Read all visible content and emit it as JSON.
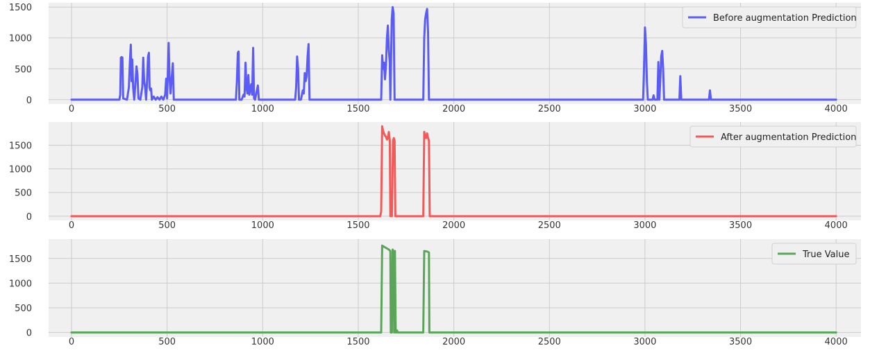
{
  "chart_data": [
    {
      "type": "line",
      "xlim": [
        -120,
        4130
      ],
      "ylim": [
        -70,
        1570
      ],
      "xticks": [
        0,
        500,
        1000,
        1500,
        2000,
        2500,
        3000,
        3500,
        4000
      ],
      "yticks": [
        0,
        500,
        1000,
        1500
      ],
      "xtick_labels": [
        "0",
        "500",
        "1000",
        "1500",
        "2000",
        "2500",
        "3000",
        "3500",
        "4000"
      ],
      "ytick_labels": [
        "0",
        "500",
        "1000",
        "1500"
      ],
      "grid": true,
      "legend_position": "top-right",
      "series": [
        {
          "name": "Before augmentation Prediction",
          "color": "#5b5bf5",
          "points": [
            [
              0,
              0
            ],
            [
              250,
              0
            ],
            [
              255,
              80
            ],
            [
              258,
              680
            ],
            [
              262,
              690
            ],
            [
              266,
              680
            ],
            [
              270,
              20
            ],
            [
              290,
              0
            ],
            [
              300,
              200
            ],
            [
              305,
              600
            ],
            [
              310,
              890
            ],
            [
              314,
              300
            ],
            [
              318,
              650
            ],
            [
              322,
              200
            ],
            [
              328,
              0
            ],
            [
              335,
              300
            ],
            [
              340,
              540
            ],
            [
              345,
              400
            ],
            [
              350,
              20
            ],
            [
              360,
              0
            ],
            [
              370,
              200
            ],
            [
              375,
              680
            ],
            [
              380,
              300
            ],
            [
              385,
              200
            ],
            [
              390,
              0
            ],
            [
              395,
              300
            ],
            [
              400,
              700
            ],
            [
              405,
              760
            ],
            [
              408,
              200
            ],
            [
              412,
              150
            ],
            [
              416,
              180
            ],
            [
              420,
              0
            ],
            [
              430,
              50
            ],
            [
              440,
              0
            ],
            [
              450,
              40
            ],
            [
              460,
              0
            ],
            [
              470,
              50
            ],
            [
              480,
              0
            ],
            [
              490,
              80
            ],
            [
              495,
              340
            ],
            [
              500,
              20
            ],
            [
              505,
              600
            ],
            [
              508,
              920
            ],
            [
              512,
              400
            ],
            [
              518,
              100
            ],
            [
              525,
              400
            ],
            [
              530,
              590
            ],
            [
              535,
              0
            ],
            [
              600,
              0
            ],
            [
              860,
              0
            ],
            [
              865,
              300
            ],
            [
              870,
              760
            ],
            [
              874,
              780
            ],
            [
              878,
              0
            ],
            [
              890,
              0
            ],
            [
              900,
              80
            ],
            [
              905,
              50
            ],
            [
              910,
              600
            ],
            [
              915,
              200
            ],
            [
              920,
              100
            ],
            [
              925,
              400
            ],
            [
              930,
              80
            ],
            [
              940,
              250
            ],
            [
              945,
              80
            ],
            [
              950,
              840
            ],
            [
              955,
              20
            ],
            [
              960,
              0
            ],
            [
              975,
              230
            ],
            [
              980,
              0
            ],
            [
              1170,
              0
            ],
            [
              1175,
              200
            ],
            [
              1180,
              700
            ],
            [
              1185,
              500
            ],
            [
              1190,
              0
            ],
            [
              1200,
              0
            ],
            [
              1210,
              150
            ],
            [
              1215,
              100
            ],
            [
              1220,
              430
            ],
            [
              1225,
              300
            ],
            [
              1230,
              380
            ],
            [
              1235,
              700
            ],
            [
              1240,
              900
            ],
            [
              1245,
              0
            ],
            [
              1300,
              0
            ],
            [
              1620,
              0
            ],
            [
              1625,
              720
            ],
            [
              1630,
              500
            ],
            [
              1635,
              600
            ],
            [
              1640,
              330
            ],
            [
              1645,
              560
            ],
            [
              1650,
              1000
            ],
            [
              1655,
              1200
            ],
            [
              1660,
              800
            ],
            [
              1665,
              600
            ],
            [
              1668,
              0
            ],
            [
              1675,
              1300
            ],
            [
              1680,
              1500
            ],
            [
              1685,
              1400
            ],
            [
              1690,
              0
            ],
            [
              1700,
              0
            ],
            [
              1840,
              0
            ],
            [
              1845,
              1000
            ],
            [
              1850,
              1300
            ],
            [
              1855,
              1400
            ],
            [
              1860,
              1470
            ],
            [
              1865,
              1100
            ],
            [
              1870,
              0
            ],
            [
              1900,
              0
            ],
            [
              2990,
              0
            ],
            [
              2995,
              500
            ],
            [
              3000,
              1170
            ],
            [
              3005,
              900
            ],
            [
              3010,
              300
            ],
            [
              3015,
              0
            ],
            [
              3040,
              0
            ],
            [
              3045,
              70
            ],
            [
              3050,
              0
            ],
            [
              3065,
              0
            ],
            [
              3070,
              610
            ],
            [
              3075,
              0
            ],
            [
              3080,
              300
            ],
            [
              3085,
              700
            ],
            [
              3090,
              790
            ],
            [
              3095,
              500
            ],
            [
              3100,
              0
            ],
            [
              3180,
              0
            ],
            [
              3185,
              380
            ],
            [
              3190,
              0
            ],
            [
              3335,
              0
            ],
            [
              3340,
              150
            ],
            [
              3345,
              0
            ],
            [
              4000,
              0
            ]
          ]
        }
      ]
    },
    {
      "type": "line",
      "xlim": [
        -120,
        4130
      ],
      "ylim": [
        -90,
        1990
      ],
      "xticks": [
        0,
        500,
        1000,
        1500,
        2000,
        2500,
        3000,
        3500,
        4000
      ],
      "yticks": [
        0,
        500,
        1000,
        1500
      ],
      "xtick_labels": [
        "0",
        "500",
        "1000",
        "1500",
        "2000",
        "2500",
        "3000",
        "3500",
        "4000"
      ],
      "ytick_labels": [
        "0",
        "500",
        "1000",
        "1500"
      ],
      "grid": true,
      "legend_position": "top-right",
      "series": [
        {
          "name": "After augmentation Prediction",
          "color": "#f25a5a",
          "points": [
            [
              0,
              0
            ],
            [
              1615,
              0
            ],
            [
              1620,
              100
            ],
            [
              1625,
              1900
            ],
            [
              1630,
              1800
            ],
            [
              1635,
              1750
            ],
            [
              1640,
              1700
            ],
            [
              1645,
              1680
            ],
            [
              1650,
              1620
            ],
            [
              1655,
              1640
            ],
            [
              1660,
              1780
            ],
            [
              1665,
              1600
            ],
            [
              1668,
              0
            ],
            [
              1672,
              200
            ],
            [
              1676,
              0
            ],
            [
              1682,
              1600
            ],
            [
              1686,
              1650
            ],
            [
              1690,
              1600
            ],
            [
              1694,
              0
            ],
            [
              1700,
              0
            ],
            [
              1840,
              0
            ],
            [
              1845,
              1780
            ],
            [
              1850,
              1700
            ],
            [
              1855,
              1650
            ],
            [
              1860,
              1750
            ],
            [
              1865,
              1650
            ],
            [
              1870,
              1600
            ],
            [
              1874,
              0
            ],
            [
              4000,
              0
            ]
          ]
        }
      ]
    },
    {
      "type": "line",
      "xlim": [
        -120,
        4130
      ],
      "ylim": [
        -90,
        1890
      ],
      "xticks": [
        0,
        500,
        1000,
        1500,
        2000,
        2500,
        3000,
        3500,
        4000
      ],
      "yticks": [
        0,
        500,
        1000,
        1500
      ],
      "xtick_labels": [
        "0",
        "500",
        "1000",
        "1500",
        "2000",
        "2500",
        "3000",
        "3500",
        "4000"
      ],
      "ytick_labels": [
        "0",
        "500",
        "1000",
        "1500"
      ],
      "grid": true,
      "legend_position": "top-right",
      "series": [
        {
          "name": "True Value",
          "color": "#5aa55a",
          "points": [
            [
              0,
              0
            ],
            [
              1620,
              0
            ],
            [
              1625,
              1760
            ],
            [
              1660,
              1680
            ],
            [
              1668,
              1650
            ],
            [
              1670,
              0
            ],
            [
              1676,
              0
            ],
            [
              1680,
              1680
            ],
            [
              1686,
              1640
            ],
            [
              1688,
              0
            ],
            [
              1692,
              1650
            ],
            [
              1696,
              0
            ],
            [
              1700,
              0
            ],
            [
              1703,
              40
            ],
            [
              1706,
              0
            ],
            [
              1840,
              0
            ],
            [
              1845,
              1650
            ],
            [
              1860,
              1640
            ],
            [
              1870,
              1620
            ],
            [
              1872,
              0
            ],
            [
              4000,
              0
            ]
          ]
        }
      ]
    }
  ]
}
